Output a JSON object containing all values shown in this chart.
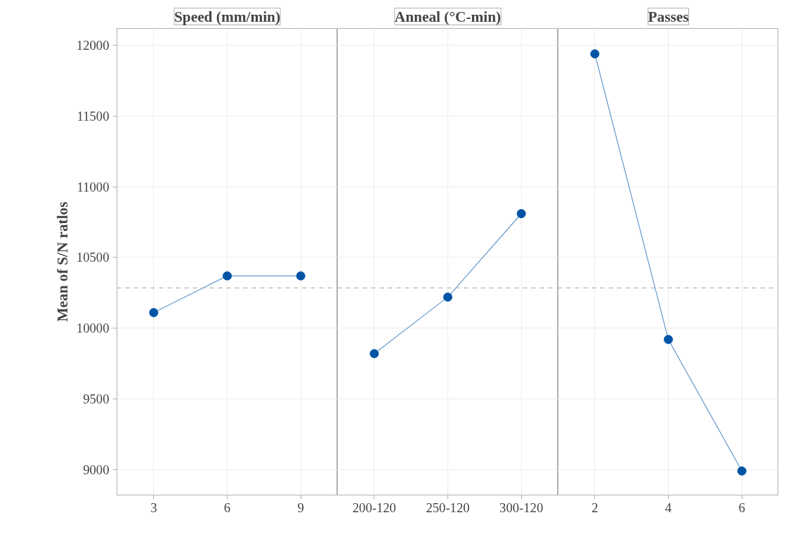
{
  "chart_data": [
    {
      "type": "line",
      "title": "Speed (mm/min)",
      "ylabel": "Mean of S/N ratlos",
      "categories": [
        "3",
        "6",
        "9"
      ],
      "series": [
        {
          "color": "#0054a6",
          "values": [
            10110,
            10370,
            10370
          ]
        }
      ],
      "ylim": [
        8820,
        12120
      ],
      "yticks": [
        9000,
        9500,
        10000,
        10500,
        11000,
        11500,
        12000
      ],
      "grid": true,
      "marker": "circle",
      "ref_lines": [
        {
          "axis": "y",
          "value": 10285,
          "color": "#b4b4b4",
          "line_style": "dashed"
        }
      ]
    },
    {
      "type": "line",
      "title": "Anneal (°C-min)",
      "categories": [
        "200-120",
        "250-120",
        "300-120"
      ],
      "series": [
        {
          "color": "#0054a6",
          "values": [
            9820,
            10220,
            10810
          ]
        }
      ],
      "ylim": [
        8820,
        12120
      ],
      "yticks": [
        9000,
        9500,
        10000,
        10500,
        11000,
        11500,
        12000
      ],
      "grid": true,
      "marker": "circle",
      "tick_labels": "x",
      "ref_lines": [
        {
          "axis": "y",
          "value": 10285,
          "color": "#b4b4b4",
          "line_style": "dashed"
        }
      ]
    },
    {
      "type": "line",
      "title": "Passes",
      "categories": [
        "2",
        "4",
        "6"
      ],
      "series": [
        {
          "color": "#0054a6",
          "values": [
            11940,
            9920,
            8990
          ]
        }
      ],
      "ylim": [
        8820,
        12120
      ],
      "yticks": [
        9000,
        9500,
        10000,
        10500,
        11000,
        11500,
        12000
      ],
      "grid": true,
      "marker": "circle",
      "tick_labels": "x",
      "ref_lines": [
        {
          "axis": "y",
          "value": 10285,
          "color": "#b4b4b4",
          "line_style": "dashed"
        }
      ]
    }
  ]
}
